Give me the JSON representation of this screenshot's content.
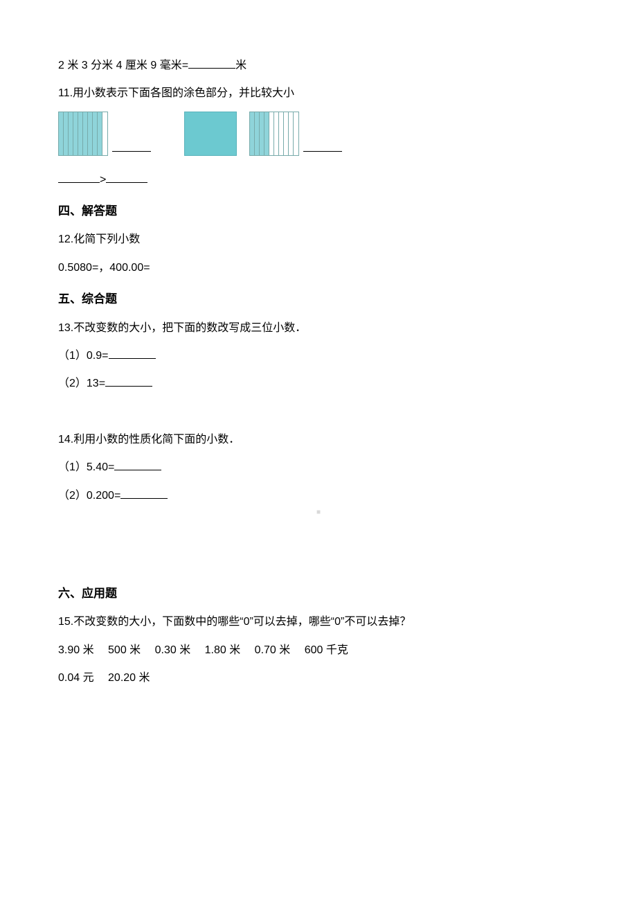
{
  "q10": {
    "text_before": "2 米 3 分米 4 厘米 9 毫米=",
    "text_after": "米"
  },
  "q11": {
    "prompt": "11.用小数表示下面各图的涂色部分，并比较大小",
    "fig1": {
      "total": 10,
      "filled": 9
    },
    "fig2": {
      "type": "solid"
    },
    "fig3": {
      "total": 10,
      "filled": 4
    },
    "gt_symbol": ">"
  },
  "section4": {
    "heading": "四、解答题"
  },
  "q12": {
    "prompt": "12.化简下列小数",
    "expr": "0.5080=，400.00="
  },
  "section5": {
    "heading": "五、综合题"
  },
  "q13": {
    "prompt": "13.不改变数的大小，把下面的数改写成三位小数．",
    "sub1": "（1）0.9=",
    "sub2": "（2）13="
  },
  "q14": {
    "prompt": "14.利用小数的性质化简下面的小数．",
    "sub1": "（1）5.40=",
    "sub2": "（2）0.200="
  },
  "section6": {
    "heading": "六、应用题"
  },
  "q15": {
    "prompt": "15.不改变数的大小，下面数中的哪些“0”可以去掉，哪些“0”不可以去掉？",
    "line1": "3.90 米  500 米  0.30 米  1.80 米  0.70 米  600 千克",
    "line2": "0.04 元  20.20 米"
  },
  "watermark": "■"
}
